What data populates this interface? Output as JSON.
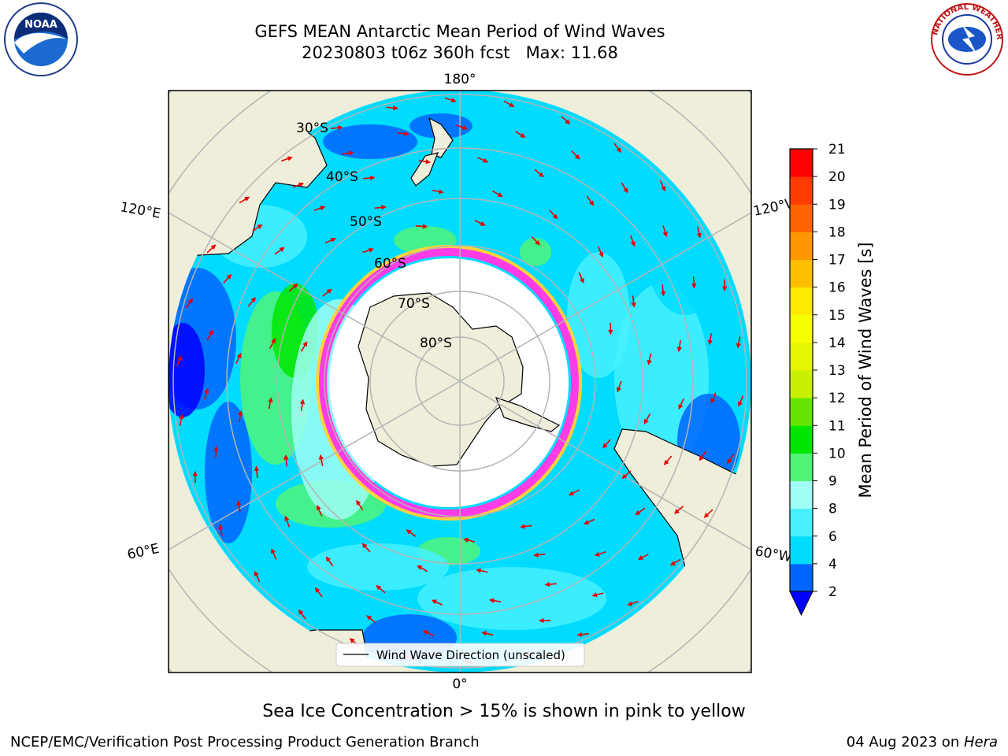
{
  "title": {
    "line1": "GEFS MEAN Antarctic Mean Period of Wind Waves",
    "line2": "20230803 t06z 360h fcst   Max: 11.68"
  },
  "map": {
    "projection": "south-polar-stereographic",
    "meridian_labels": {
      "top": "180°",
      "bottom": "0°",
      "upper_left": "120°E",
      "upper_right": "120°W",
      "lower_left": "60°E",
      "lower_right": "60°W"
    },
    "latitude_labels": [
      "30°S",
      "40°S",
      "50°S",
      "60°S",
      "70°S",
      "80°S"
    ],
    "legend_label": "Wind Wave Direction (unscaled)",
    "colors": {
      "land": "#efeedb",
      "ice_free_white": "#ffffff",
      "sea_ice_pink": "#ff3ce6",
      "sea_ice_yellow": "#ffd23c",
      "arrows": "#e60000",
      "grid": "#b4b4b4"
    }
  },
  "colorbar": {
    "label": "Mean Period of Wind Waves [s]",
    "ticks": [
      "2",
      "4",
      "6",
      "8",
      "9",
      "10",
      "11",
      "12",
      "13",
      "14",
      "15",
      "16",
      "17",
      "18",
      "19",
      "20",
      "21"
    ],
    "bins": [
      {
        "from": 2,
        "to": 4,
        "color": "#0064ff"
      },
      {
        "from": 4,
        "to": 6,
        "color": "#00dcff"
      },
      {
        "from": 6,
        "to": 8,
        "color": "#46f0ff"
      },
      {
        "from": 8,
        "to": 9,
        "color": "#a0fff5"
      },
      {
        "from": 9,
        "to": 10,
        "color": "#50f578"
      },
      {
        "from": 10,
        "to": 11,
        "color": "#00e600"
      },
      {
        "from": 11,
        "to": 12,
        "color": "#64e600"
      },
      {
        "from": 12,
        "to": 13,
        "color": "#c8f000"
      },
      {
        "from": 13,
        "to": 14,
        "color": "#e6f500"
      },
      {
        "from": 14,
        "to": 15,
        "color": "#f5ff00"
      },
      {
        "from": 15,
        "to": 16,
        "color": "#ffeb00"
      },
      {
        "from": 16,
        "to": 17,
        "color": "#ffbe00"
      },
      {
        "from": 17,
        "to": 18,
        "color": "#ff9600"
      },
      {
        "from": 18,
        "to": 19,
        "color": "#ff6400"
      },
      {
        "from": 19,
        "to": 20,
        "color": "#ff3c00"
      },
      {
        "from": 20,
        "to": 21,
        "color": "#ff0000"
      }
    ],
    "under_color": "#0000ff"
  },
  "footer": {
    "caption": "Sea Ice Concentration > 15% is shown in pink to yellow",
    "credit_left": "NCEP/EMC/Verification Post Processing Product Generation Branch",
    "date": "04 Aug 2023 on ",
    "machine": "Hera"
  },
  "logos": {
    "noaa_text": "NOAA",
    "nws_text": "NATIONAL WEATHER SERVICE"
  }
}
